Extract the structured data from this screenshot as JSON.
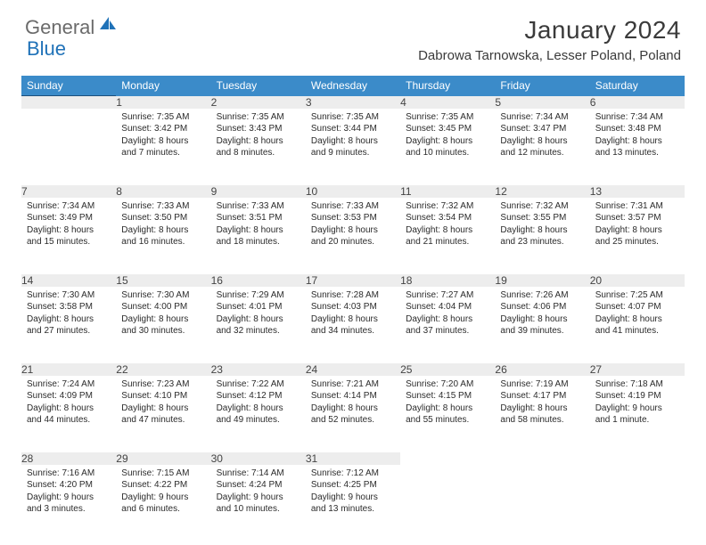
{
  "logo": {
    "gray": "General",
    "blue": "Blue"
  },
  "title": "January 2024",
  "location": "Dabrowa Tarnowska, Lesser Poland, Poland",
  "colors": {
    "header_bg": "#3b8bc9",
    "header_text": "#ffffff",
    "daynum_bg": "#ededed",
    "daynum_border": "#1c4f7c",
    "body_text": "#2b2b2b",
    "logo_gray": "#6b6b6b",
    "logo_blue": "#2072b8"
  },
  "typography": {
    "title_fontsize": 28,
    "location_fontsize": 15,
    "header_fontsize": 12,
    "daynum_fontsize": 12,
    "cell_fontsize": 10
  },
  "weekdays": [
    "Sunday",
    "Monday",
    "Tuesday",
    "Wednesday",
    "Thursday",
    "Friday",
    "Saturday"
  ],
  "weeks": [
    [
      null,
      {
        "num": "1",
        "sunrise": "7:35 AM",
        "sunset": "3:42 PM",
        "daylight": "8 hours and 7 minutes."
      },
      {
        "num": "2",
        "sunrise": "7:35 AM",
        "sunset": "3:43 PM",
        "daylight": "8 hours and 8 minutes."
      },
      {
        "num": "3",
        "sunrise": "7:35 AM",
        "sunset": "3:44 PM",
        "daylight": "8 hours and 9 minutes."
      },
      {
        "num": "4",
        "sunrise": "7:35 AM",
        "sunset": "3:45 PM",
        "daylight": "8 hours and 10 minutes."
      },
      {
        "num": "5",
        "sunrise": "7:34 AM",
        "sunset": "3:47 PM",
        "daylight": "8 hours and 12 minutes."
      },
      {
        "num": "6",
        "sunrise": "7:34 AM",
        "sunset": "3:48 PM",
        "daylight": "8 hours and 13 minutes."
      }
    ],
    [
      {
        "num": "7",
        "sunrise": "7:34 AM",
        "sunset": "3:49 PM",
        "daylight": "8 hours and 15 minutes."
      },
      {
        "num": "8",
        "sunrise": "7:33 AM",
        "sunset": "3:50 PM",
        "daylight": "8 hours and 16 minutes."
      },
      {
        "num": "9",
        "sunrise": "7:33 AM",
        "sunset": "3:51 PM",
        "daylight": "8 hours and 18 minutes."
      },
      {
        "num": "10",
        "sunrise": "7:33 AM",
        "sunset": "3:53 PM",
        "daylight": "8 hours and 20 minutes."
      },
      {
        "num": "11",
        "sunrise": "7:32 AM",
        "sunset": "3:54 PM",
        "daylight": "8 hours and 21 minutes."
      },
      {
        "num": "12",
        "sunrise": "7:32 AM",
        "sunset": "3:55 PM",
        "daylight": "8 hours and 23 minutes."
      },
      {
        "num": "13",
        "sunrise": "7:31 AM",
        "sunset": "3:57 PM",
        "daylight": "8 hours and 25 minutes."
      }
    ],
    [
      {
        "num": "14",
        "sunrise": "7:30 AM",
        "sunset": "3:58 PM",
        "daylight": "8 hours and 27 minutes."
      },
      {
        "num": "15",
        "sunrise": "7:30 AM",
        "sunset": "4:00 PM",
        "daylight": "8 hours and 30 minutes."
      },
      {
        "num": "16",
        "sunrise": "7:29 AM",
        "sunset": "4:01 PM",
        "daylight": "8 hours and 32 minutes."
      },
      {
        "num": "17",
        "sunrise": "7:28 AM",
        "sunset": "4:03 PM",
        "daylight": "8 hours and 34 minutes."
      },
      {
        "num": "18",
        "sunrise": "7:27 AM",
        "sunset": "4:04 PM",
        "daylight": "8 hours and 37 minutes."
      },
      {
        "num": "19",
        "sunrise": "7:26 AM",
        "sunset": "4:06 PM",
        "daylight": "8 hours and 39 minutes."
      },
      {
        "num": "20",
        "sunrise": "7:25 AM",
        "sunset": "4:07 PM",
        "daylight": "8 hours and 41 minutes."
      }
    ],
    [
      {
        "num": "21",
        "sunrise": "7:24 AM",
        "sunset": "4:09 PM",
        "daylight": "8 hours and 44 minutes."
      },
      {
        "num": "22",
        "sunrise": "7:23 AM",
        "sunset": "4:10 PM",
        "daylight": "8 hours and 47 minutes."
      },
      {
        "num": "23",
        "sunrise": "7:22 AM",
        "sunset": "4:12 PM",
        "daylight": "8 hours and 49 minutes."
      },
      {
        "num": "24",
        "sunrise": "7:21 AM",
        "sunset": "4:14 PM",
        "daylight": "8 hours and 52 minutes."
      },
      {
        "num": "25",
        "sunrise": "7:20 AM",
        "sunset": "4:15 PM",
        "daylight": "8 hours and 55 minutes."
      },
      {
        "num": "26",
        "sunrise": "7:19 AM",
        "sunset": "4:17 PM",
        "daylight": "8 hours and 58 minutes."
      },
      {
        "num": "27",
        "sunrise": "7:18 AM",
        "sunset": "4:19 PM",
        "daylight": "9 hours and 1 minute."
      }
    ],
    [
      {
        "num": "28",
        "sunrise": "7:16 AM",
        "sunset": "4:20 PM",
        "daylight": "9 hours and 3 minutes."
      },
      {
        "num": "29",
        "sunrise": "7:15 AM",
        "sunset": "4:22 PM",
        "daylight": "9 hours and 6 minutes."
      },
      {
        "num": "30",
        "sunrise": "7:14 AM",
        "sunset": "4:24 PM",
        "daylight": "9 hours and 10 minutes."
      },
      {
        "num": "31",
        "sunrise": "7:12 AM",
        "sunset": "4:25 PM",
        "daylight": "9 hours and 13 minutes."
      },
      null,
      null,
      null
    ]
  ]
}
